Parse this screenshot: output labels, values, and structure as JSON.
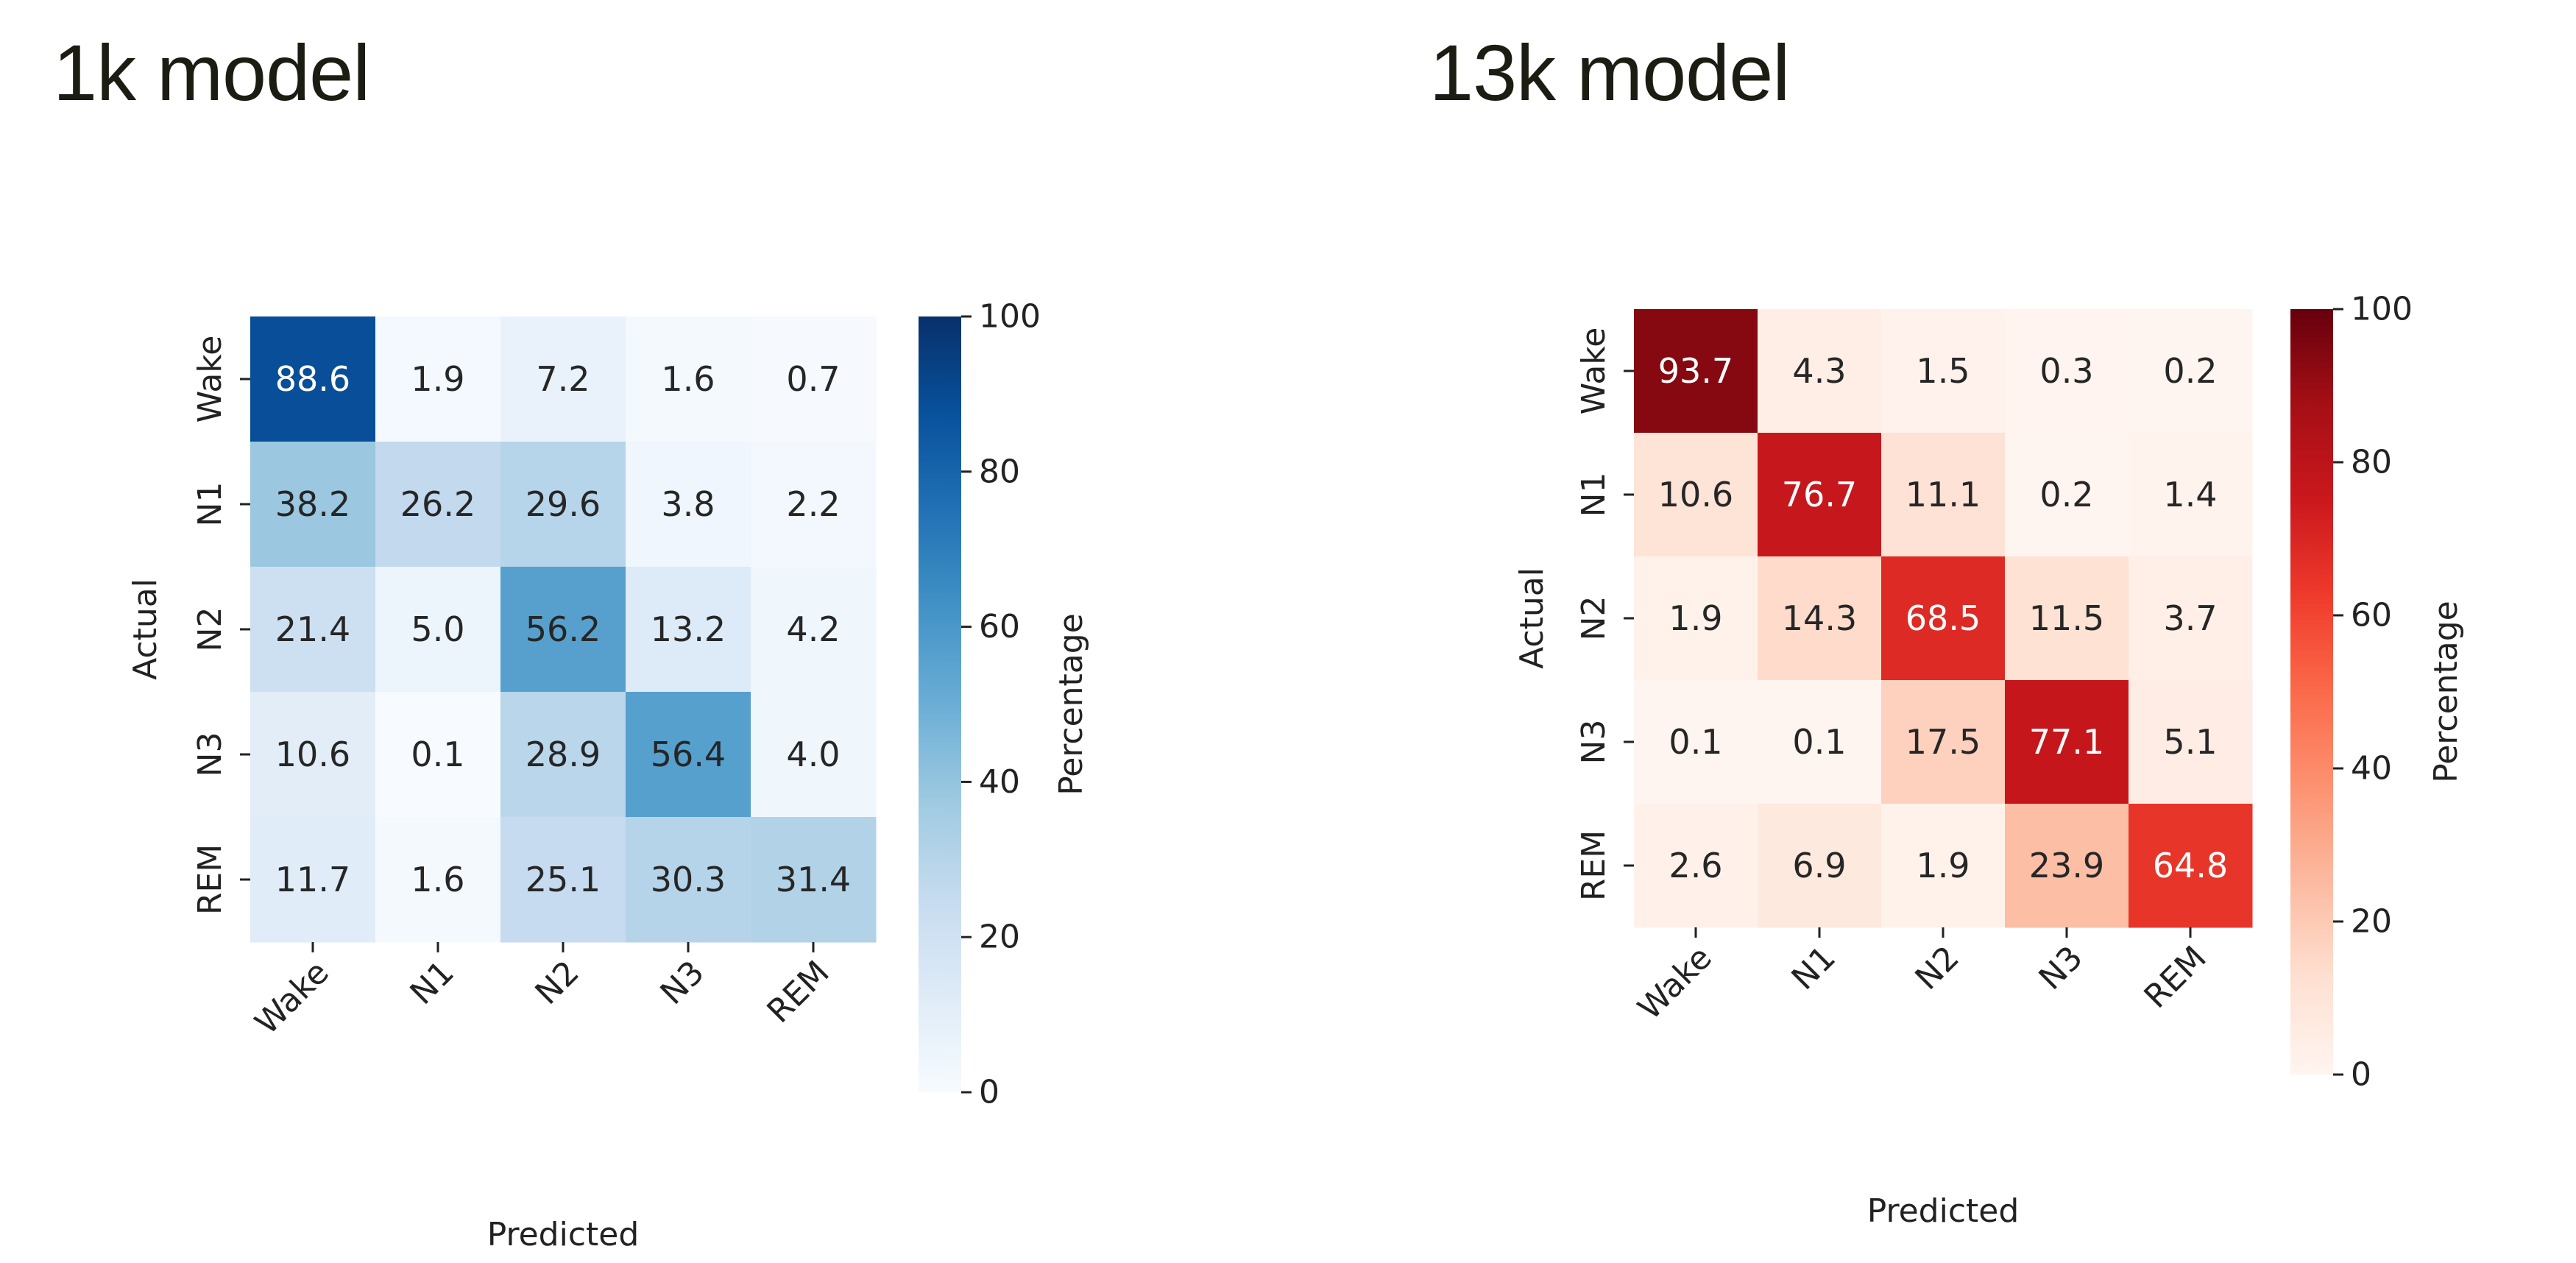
{
  "panels": [
    {
      "title": "1k model"
    },
    {
      "title": "13k model"
    }
  ],
  "chart_data": [
    {
      "type": "heatmap",
      "title": "1k model",
      "xlabel": "Predicted",
      "ylabel": "Actual",
      "x_categories": [
        "Wake",
        "N1",
        "N2",
        "N3",
        "REM"
      ],
      "y_categories": [
        "Wake",
        "N1",
        "N2",
        "N3",
        "REM"
      ],
      "values": [
        [
          88.6,
          1.9,
          7.2,
          1.6,
          0.7
        ],
        [
          38.2,
          26.2,
          29.6,
          3.8,
          2.2
        ],
        [
          21.4,
          5.0,
          56.2,
          13.2,
          4.2
        ],
        [
          10.6,
          0.1,
          28.9,
          56.4,
          4.0
        ],
        [
          11.7,
          1.6,
          25.1,
          30.3,
          31.4
        ]
      ],
      "colormap": "Blues",
      "color_low": "#f7fbff",
      "color_high": "#08306b",
      "colorbar": {
        "label": "Percentage",
        "range": [
          0,
          100
        ],
        "ticks": [
          0,
          20,
          40,
          60,
          80,
          100
        ]
      }
    },
    {
      "type": "heatmap",
      "title": "13k model",
      "xlabel": "Predicted",
      "ylabel": "Actual",
      "x_categories": [
        "Wake",
        "N1",
        "N2",
        "N3",
        "REM"
      ],
      "y_categories": [
        "Wake",
        "N1",
        "N2",
        "N3",
        "REM"
      ],
      "values": [
        [
          93.7,
          4.3,
          1.5,
          0.3,
          0.2
        ],
        [
          10.6,
          76.7,
          11.1,
          0.2,
          1.4
        ],
        [
          1.9,
          14.3,
          68.5,
          11.5,
          3.7
        ],
        [
          0.1,
          0.1,
          17.5,
          77.1,
          5.1
        ],
        [
          2.6,
          6.9,
          1.9,
          23.9,
          64.8
        ]
      ],
      "colormap": "Reds",
      "color_low": "#fff5f0",
      "color_high": "#67000d",
      "colorbar": {
        "label": "Percentage",
        "range": [
          0,
          100
        ],
        "ticks": [
          0,
          20,
          40,
          60,
          80,
          100
        ]
      }
    }
  ]
}
